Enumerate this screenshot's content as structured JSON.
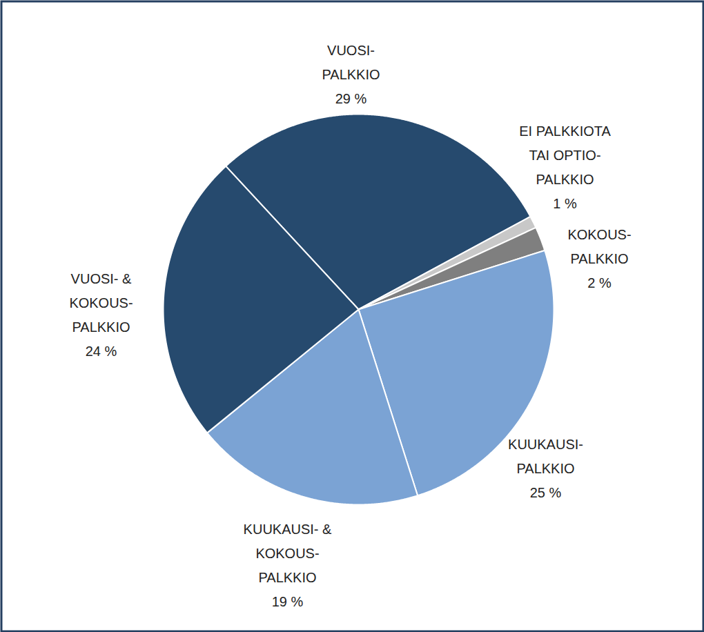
{
  "chart_data": {
    "type": "pie",
    "categories": [
      "VUOSI-\nPALKKIO",
      "EI PALKKIOTA\nTAI OPTIO-\nPALKKIO",
      "KOKOUS-\nPALKKIO",
      "KUUKAUSI-\nPALKKIO",
      "KUUKAUSI- &\nKOKOUS-\nPALKKIO",
      "VUOSI- &\nKOKOUS-\nPALKKIO"
    ],
    "values": [
      29,
      1,
      2,
      25,
      19,
      24
    ],
    "value_labels": [
      "29 %",
      "1 %",
      "2 %",
      "25 %",
      "19 %",
      "24 %"
    ],
    "colors": [
      "#264a6e",
      "#c8c8c8",
      "#7f7f7f",
      "#7ba3d4",
      "#7ba3d4",
      "#264a6e"
    ],
    "data_labels": true
  }
}
